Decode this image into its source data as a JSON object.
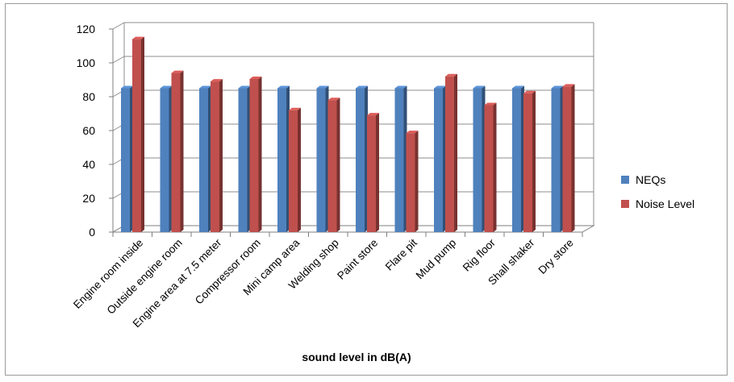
{
  "chart_data": {
    "type": "bar",
    "title": "",
    "xlabel": "sound level in dB(A)",
    "ylabel": "",
    "ylim": [
      0,
      120
    ],
    "yticks": [
      0,
      20,
      40,
      60,
      80,
      100,
      120
    ],
    "grid": true,
    "legend_position": "right",
    "categories": [
      "Engine room inside",
      "Outside engine room",
      "Engine area at 7.5 meter",
      "Compressor room",
      "Mini camp area",
      "Welding shop",
      "Paint store",
      "Flare pit",
      "Mud pump",
      "Rig floor",
      "Shall shaker",
      "Dry store"
    ],
    "series": [
      {
        "name": "NEQs",
        "color": "#4f81bd",
        "values": [
          85,
          85,
          85,
          85,
          85,
          85,
          85,
          85,
          85,
          85,
          85,
          85
        ]
      },
      {
        "name": "Noise Level",
        "color": "#c0504d",
        "values": [
          114,
          94,
          89,
          90.5,
          72,
          78,
          69,
          58.5,
          92,
          75,
          82,
          86
        ]
      }
    ]
  }
}
